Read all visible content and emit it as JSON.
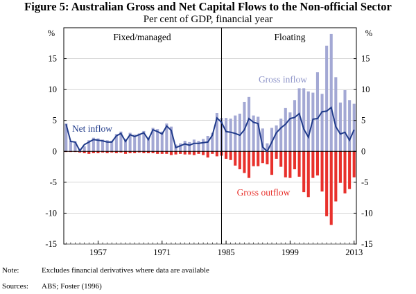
{
  "chart_data": {
    "type": "bar",
    "title": "Figure 5: Australian Gross and Net Capital Flows to the Non-official Sector",
    "subtitle": "Per cent of GDP, financial year",
    "unit_label": "%",
    "ylim": [
      -15,
      20
    ],
    "yticks": [
      -15,
      -10,
      -5,
      0,
      5,
      10,
      15
    ],
    "x_range": [
      1950,
      2013
    ],
    "xticks": [
      1957,
      1971,
      1985,
      1999,
      2013
    ],
    "regime_split_year": 1984,
    "regions": [
      "Fixed/managed",
      "Floating"
    ],
    "series": [
      {
        "name": "Gross inflow",
        "color": "#a3a8d4",
        "kind": "bar",
        "x": [
          1950,
          1951,
          1952,
          1953,
          1954,
          1955,
          1956,
          1957,
          1958,
          1959,
          1960,
          1961,
          1962,
          1963,
          1964,
          1965,
          1966,
          1967,
          1968,
          1969,
          1970,
          1971,
          1972,
          1973,
          1974,
          1975,
          1976,
          1977,
          1978,
          1979,
          1980,
          1981,
          1982,
          1983,
          1984,
          1985,
          1986,
          1987,
          1988,
          1989,
          1990,
          1991,
          1992,
          1993,
          1994,
          1995,
          1996,
          1997,
          1998,
          1999,
          2000,
          2001,
          2002,
          2003,
          2004,
          2005,
          2006,
          2007,
          2008,
          2009,
          2010,
          2011,
          2012,
          2013
        ],
        "values": [
          4.5,
          1.7,
          1.6,
          0.3,
          0.8,
          1.8,
          2.2,
          2.1,
          1.9,
          1.8,
          1.7,
          2.8,
          3.2,
          2.0,
          3.0,
          2.7,
          2.9,
          3.3,
          2.2,
          3.8,
          3.6,
          3.2,
          4.5,
          4.0,
          1.1,
          1.3,
          1.7,
          1.5,
          1.9,
          1.7,
          2.0,
          2.5,
          3.0,
          6.2,
          5.4,
          5.4,
          5.3,
          5.8,
          6.1,
          8.0,
          8.8,
          5.8,
          5.6,
          3.7,
          1.3,
          3.8,
          4.2,
          5.3,
          7.0,
          6.3,
          8.3,
          10.2,
          10.2,
          9.7,
          9.5,
          12.8,
          9.3,
          17.1,
          19.0,
          12.0,
          7.9,
          9.9,
          8.3,
          7.7
        ]
      },
      {
        "name": "Gross outflow",
        "color": "#e8312c",
        "kind": "bar",
        "x": [
          1950,
          1951,
          1952,
          1953,
          1954,
          1955,
          1956,
          1957,
          1958,
          1959,
          1960,
          1961,
          1962,
          1963,
          1964,
          1965,
          1966,
          1967,
          1968,
          1969,
          1970,
          1971,
          1972,
          1973,
          1974,
          1975,
          1976,
          1977,
          1978,
          1979,
          1980,
          1981,
          1982,
          1983,
          1984,
          1985,
          1986,
          1987,
          1988,
          1989,
          1990,
          1991,
          1992,
          1993,
          1994,
          1995,
          1996,
          1997,
          1998,
          1999,
          2000,
          2001,
          2002,
          2003,
          2004,
          2005,
          2006,
          2007,
          2008,
          2009,
          2010,
          2011,
          2012,
          2013
        ],
        "values": [
          -0.1,
          -0.1,
          -0.1,
          -0.2,
          -0.3,
          -0.4,
          -0.3,
          -0.3,
          -0.2,
          -0.3,
          -0.2,
          -0.3,
          -0.2,
          -0.4,
          -0.3,
          -0.3,
          -0.2,
          -0.3,
          -0.3,
          -0.3,
          -0.4,
          -0.4,
          -0.4,
          -0.6,
          -0.5,
          -0.4,
          -0.5,
          -0.5,
          -0.6,
          -0.4,
          -0.6,
          -1.0,
          -0.4,
          -0.8,
          -0.7,
          -1.2,
          -1.4,
          -2.3,
          -2.9,
          -3.5,
          -4.3,
          -2.4,
          -2.4,
          -1.9,
          -2.1,
          -3.8,
          -1.2,
          -2.5,
          -4.2,
          -4.3,
          -2.9,
          -4.1,
          -6.6,
          -7.4,
          -4.3,
          -3.9,
          -6.5,
          -10.5,
          -11.9,
          -8.1,
          -5.1,
          -6.8,
          -6.1,
          -4.2
        ]
      },
      {
        "name": "Net inflow",
        "color": "#1f3a8a",
        "kind": "line",
        "x": [
          1950,
          1951,
          1952,
          1953,
          1954,
          1955,
          1956,
          1957,
          1958,
          1959,
          1960,
          1961,
          1962,
          1963,
          1964,
          1965,
          1966,
          1967,
          1968,
          1969,
          1970,
          1971,
          1972,
          1973,
          1974,
          1975,
          1976,
          1977,
          1978,
          1979,
          1980,
          1981,
          1982,
          1983,
          1984,
          1985,
          1986,
          1987,
          1988,
          1989,
          1990,
          1991,
          1992,
          1993,
          1994,
          1995,
          1996,
          1997,
          1998,
          1999,
          2000,
          2001,
          2002,
          2003,
          2004,
          2005,
          2006,
          2007,
          2008,
          2009,
          2010,
          2011,
          2012,
          2013
        ],
        "values": [
          4.4,
          1.6,
          1.5,
          0.1,
          1.1,
          1.5,
          1.9,
          1.8,
          1.7,
          1.5,
          1.5,
          2.5,
          2.9,
          1.6,
          2.7,
          2.4,
          2.7,
          3.0,
          1.9,
          3.5,
          3.2,
          2.8,
          4.1,
          3.4,
          0.6,
          0.9,
          1.2,
          1.0,
          1.3,
          1.3,
          1.4,
          1.5,
          2.6,
          5.4,
          4.7,
          3.2,
          3.1,
          2.9,
          2.6,
          3.5,
          5.3,
          4.7,
          4.5,
          0.7,
          0.0,
          1.5,
          3.0,
          3.8,
          4.4,
          5.3,
          5.5,
          6.1,
          3.6,
          2.3,
          5.2,
          5.3,
          6.4,
          6.5,
          7.1,
          4.0,
          2.8,
          3.1,
          1.8,
          3.5
        ]
      }
    ],
    "annotations": [
      "Net inflow",
      "Gross inflow",
      "Gross outflow"
    ]
  },
  "footnotes": {
    "note_label": "Note:",
    "note_text": "Excludes financial derivatives where data are available",
    "sources_label": "Sources:",
    "sources_text": "ABS; Foster (1996)"
  }
}
